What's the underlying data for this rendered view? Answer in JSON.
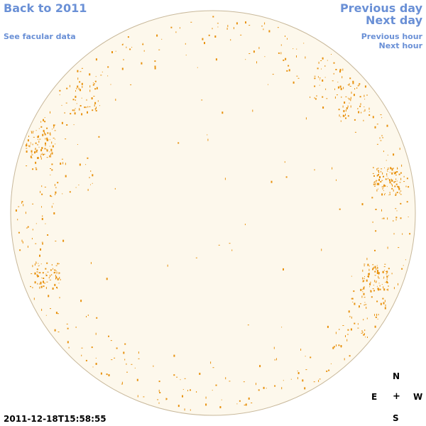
{
  "nav": {
    "back_label": "Back to 2011",
    "facular_label": "See facular data",
    "prev_day_label": "Previous day",
    "next_day_label": "Next day",
    "prev_hour_label": "Previous hour",
    "next_hour_label": "Next hour"
  },
  "compass": {
    "north": "N",
    "east": "E",
    "center": "+",
    "west": "W",
    "south": "S"
  },
  "timestamp": "2011-12-18T15:58:55",
  "colors": {
    "link": "#6a90d6",
    "disk_fill": "#fdf8ec",
    "disk_edge": "#c8b89a",
    "facula": "#e8920f"
  }
}
